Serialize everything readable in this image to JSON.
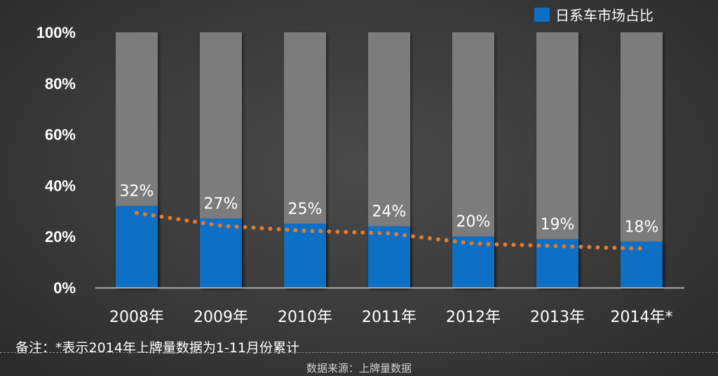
{
  "chart_data": {
    "type": "bar",
    "categories": [
      "2008年",
      "2009年",
      "2010年",
      "2011年",
      "2012年",
      "2013年",
      "2014年*"
    ],
    "series": [
      {
        "name": "日系车市场占比",
        "values": [
          32,
          27,
          25,
          24,
          20,
          19,
          18
        ],
        "labels": [
          "32%",
          "27%",
          "25%",
          "24%",
          "20%",
          "19%",
          "18%"
        ]
      }
    ],
    "y_ticks": [
      "0%",
      "20%",
      "40%",
      "60%",
      "80%",
      "100%"
    ],
    "ylim": [
      0,
      100
    ],
    "stacked_to_100": true,
    "trend_line": "dotted",
    "legend_position": "top-right",
    "grid": false,
    "colors": {
      "series": "#0a6fc5",
      "background_bar": "#7c7c7c",
      "trend": "#e07a2c",
      "axis": "#cccccc"
    }
  },
  "footer": {
    "note": "备注：*表示2014年上牌量数据为1-11月份累计",
    "source": "数据来源：上牌量数据"
  }
}
